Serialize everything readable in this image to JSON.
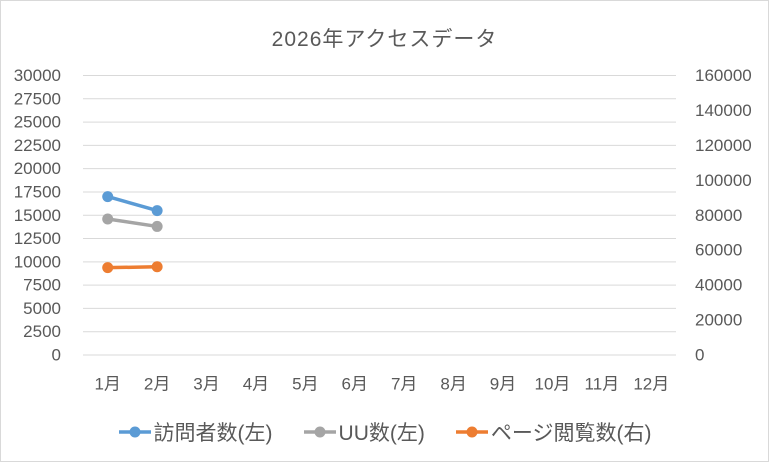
{
  "chart_data": {
    "type": "line",
    "title": "2026年アクセスデータ",
    "categories": [
      "1月",
      "2月",
      "3月",
      "4月",
      "5月",
      "6月",
      "7月",
      "8月",
      "9月",
      "10月",
      "11月",
      "12月"
    ],
    "series": [
      {
        "name": "訪問者数(左)",
        "axis": "left",
        "color": "#5B9BD5",
        "values": [
          17000,
          15500,
          null,
          null,
          null,
          null,
          null,
          null,
          null,
          null,
          null,
          null
        ]
      },
      {
        "name": "UU数(左)",
        "axis": "left",
        "color": "#A5A5A5",
        "values": [
          14600,
          13800,
          null,
          null,
          null,
          null,
          null,
          null,
          null,
          null,
          null,
          null
        ]
      },
      {
        "name": "ページ閲覧数(右)",
        "axis": "right",
        "color": "#ED7D31",
        "values": [
          50000,
          50500,
          null,
          null,
          null,
          null,
          null,
          null,
          null,
          null,
          null,
          null
        ]
      }
    ],
    "left_axis": {
      "min": 0,
      "max": 30000,
      "step": 2500
    },
    "right_axis": {
      "min": 0,
      "max": 160000,
      "step": 20000
    },
    "grid": true,
    "legend_position": "bottom",
    "text_color": "#595959",
    "grid_color": "#D9D9D9"
  }
}
